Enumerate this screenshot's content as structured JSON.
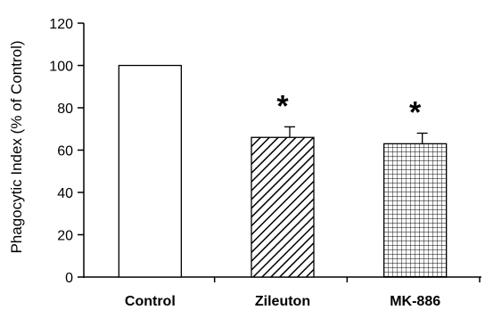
{
  "chart_data": {
    "type": "bar",
    "title": "",
    "xlabel": "",
    "ylabel": "Phagocytic Index (% of Control)",
    "ylim": [
      0,
      120
    ],
    "yticks": [
      0,
      20,
      40,
      60,
      80,
      100,
      120
    ],
    "categories": [
      "Control",
      "Zileuton",
      "MK-886"
    ],
    "values": [
      100,
      66,
      63
    ],
    "error_bars": [
      0,
      5,
      5
    ],
    "significance": [
      "",
      "*",
      "*"
    ],
    "bar_fills": [
      "plain",
      "diagonal-hatch",
      "grid-hatch"
    ],
    "grid": false,
    "legend": "none"
  }
}
